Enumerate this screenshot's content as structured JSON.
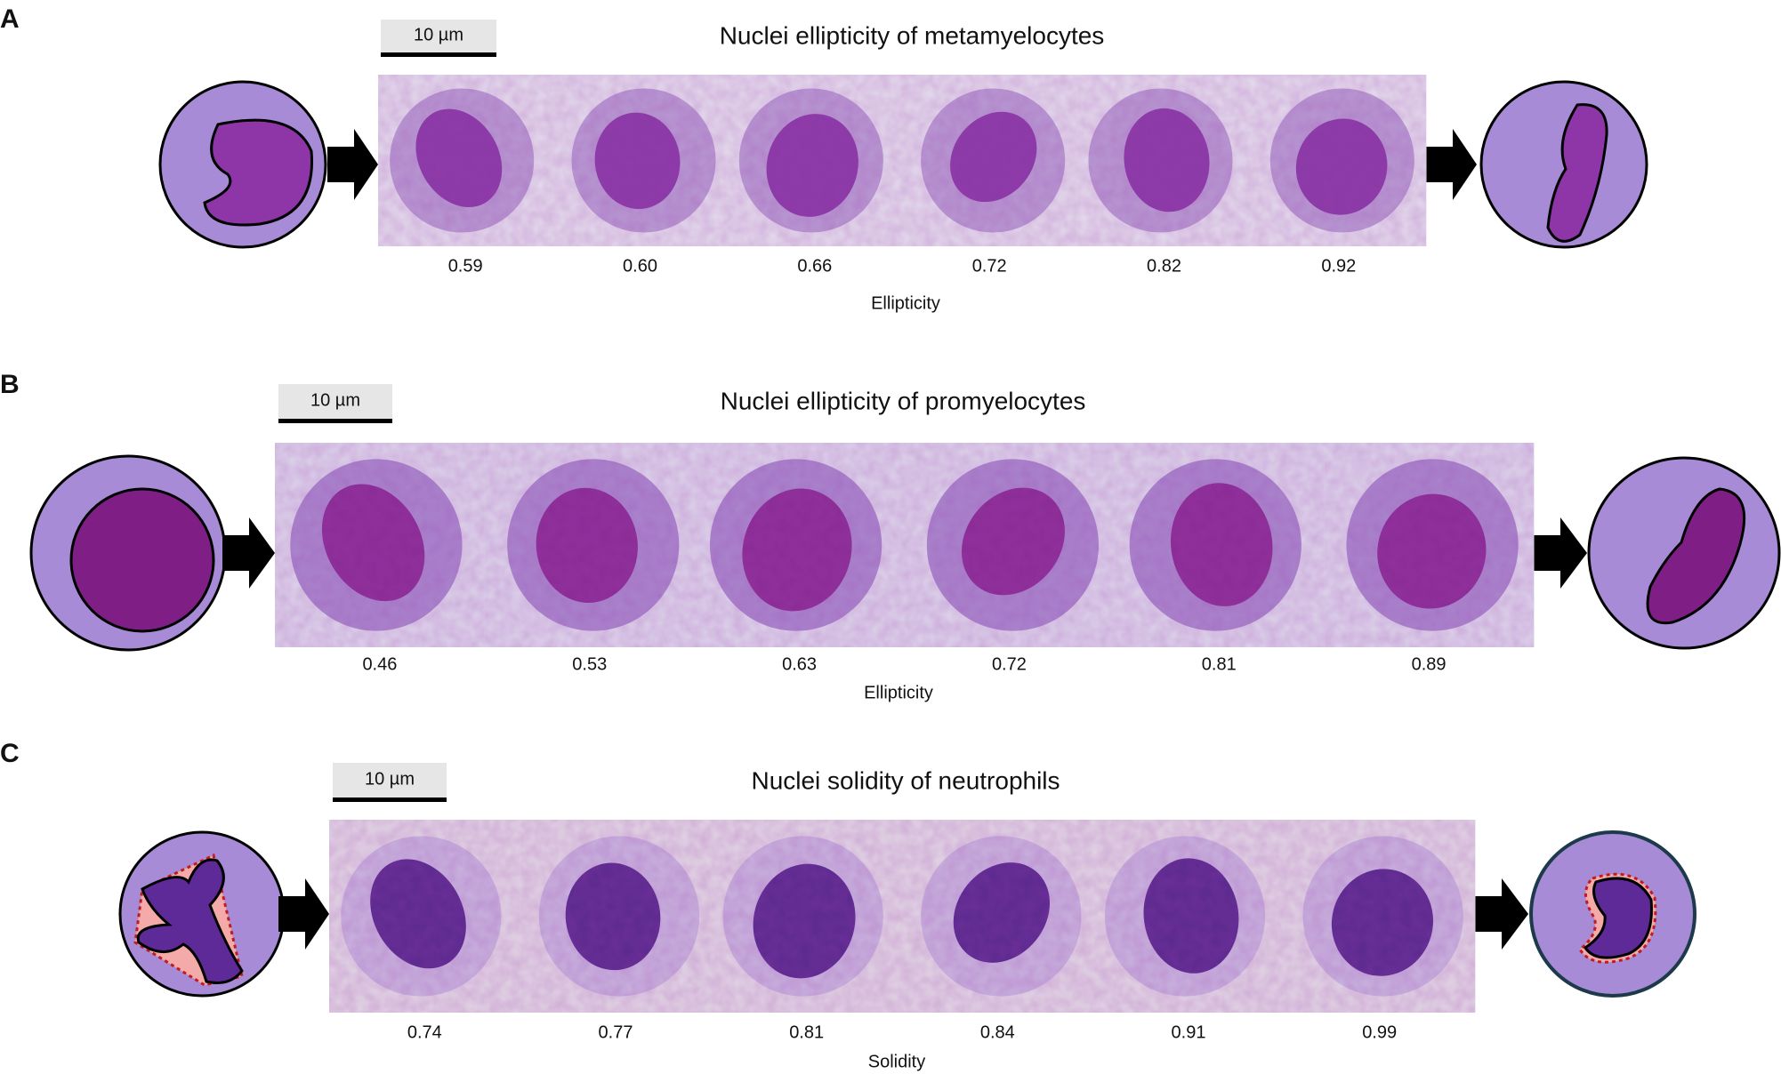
{
  "panels": [
    {
      "label": "A",
      "title": "Nuclei ellipticity of metamyelocytes",
      "scale_bar": "10 µm",
      "values": [
        "0.59",
        "0.60",
        "0.66",
        "0.72",
        "0.82",
        "0.92"
      ],
      "axis_label": "Ellipticity"
    },
    {
      "label": "B",
      "title": "Nuclei ellipticity of promyelocytes",
      "scale_bar": "10 µm",
      "values": [
        "0.46",
        "0.53",
        "0.63",
        "0.72",
        "0.81",
        "0.89"
      ],
      "axis_label": "Ellipticity"
    },
    {
      "label": "C",
      "title": "Nuclei solidity of neutrophils",
      "scale_bar": "10 µm",
      "values": [
        "0.74",
        "0.77",
        "0.81",
        "0.84",
        "0.91",
        "0.99"
      ],
      "axis_label": "Solidity"
    }
  ]
}
